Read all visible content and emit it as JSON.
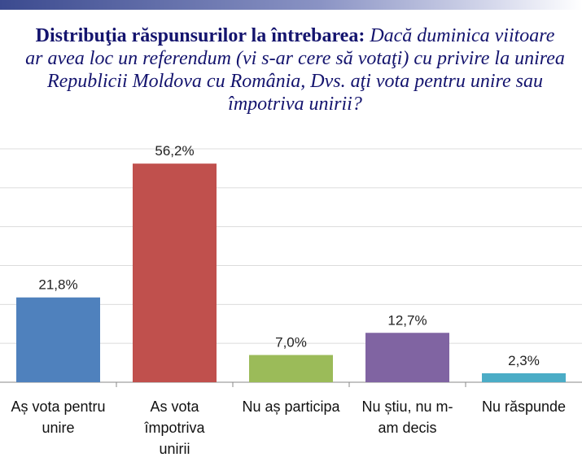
{
  "title": {
    "lead": "Distribuţia răspunsurilor la întrebarea:",
    "question": "Dacă duminica viitoare ar avea loc un referendum (vi s-ar cere să votaţi) cu privire la unirea Republicii Moldova cu România, Dvs. aţi vota pentru unire  sau împotriva unirii?"
  },
  "chart_data": {
    "type": "bar",
    "title": "Distribuţia răspunsurilor la întrebarea: Dacă duminica viitoare ar avea loc un referendum (vi s-ar cere să votaţi) cu privire la unirea Republicii Moldova cu România, Dvs. aţi vota pentru unire  sau împotriva unirii?",
    "categories": [
      [
        "Aș vota pentru",
        "unire"
      ],
      [
        "As vota",
        "împotriva",
        "unirii"
      ],
      [
        "Nu aș participa"
      ],
      [
        "Nu știu, nu m-",
        "am decis"
      ],
      [
        "Nu răspunde"
      ]
    ],
    "values": [
      21.8,
      56.2,
      7.0,
      12.7,
      2.3
    ],
    "value_labels": [
      "21,8%",
      "56,2%",
      "7,0%",
      "12,7%",
      "2,3%"
    ],
    "colors": [
      "#4f81bd",
      "#c0504d",
      "#9bbb59",
      "#8064a2",
      "#4bacc6"
    ],
    "ylim": [
      0,
      60
    ],
    "grid": true,
    "xlabel": "",
    "ylabel": ""
  }
}
